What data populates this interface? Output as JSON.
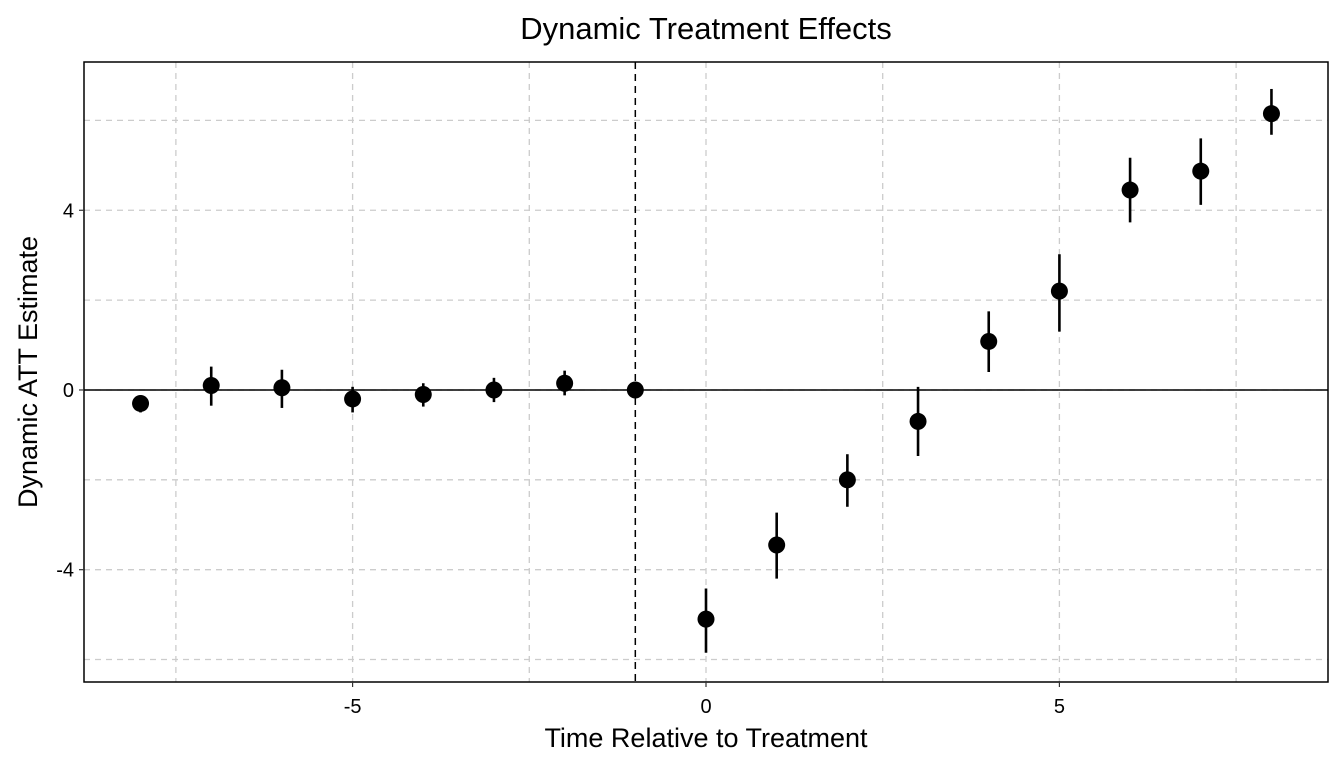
{
  "chart_data": {
    "type": "scatter",
    "title": "Dynamic Treatment Effects",
    "xlabel": "Time Relative to Treatment",
    "ylabel": "Dynamic ATT Estimate",
    "xlim": [
      -8.8,
      8.8
    ],
    "ylim": [
      -6.5,
      7.3
    ],
    "x_ticks": [
      -5,
      0,
      5
    ],
    "x_tick_labels": [
      "-5",
      "0",
      "5"
    ],
    "y_ticks": [
      -4,
      0,
      4
    ],
    "y_tick_labels": [
      "-4",
      "0",
      "4"
    ],
    "x_minor_gridlines": [
      -7.5,
      -2.5,
      2.5,
      7.5
    ],
    "y_minor_gridlines": [
      -6,
      -2,
      2,
      6
    ],
    "grid": true,
    "grid_style": "dashed",
    "hline": 0,
    "vline": -1,
    "vline_style": "dashed",
    "marker_color": "#000000",
    "series": [
      {
        "x": [
          -8,
          -7,
          -6,
          -5,
          -4,
          -3,
          -2,
          -1,
          0,
          1,
          2,
          3,
          4,
          5,
          6,
          7,
          8
        ],
        "y": [
          -0.3,
          0.1,
          0.05,
          -0.2,
          -0.1,
          0.0,
          0.15,
          0.0,
          -5.1,
          -3.45,
          -2.0,
          -0.7,
          1.08,
          2.2,
          4.45,
          4.87,
          6.15
        ],
        "ci_low": [
          -0.5,
          -0.35,
          -0.4,
          -0.5,
          -0.37,
          -0.27,
          -0.12,
          0.0,
          -5.85,
          -4.2,
          -2.6,
          -1.47,
          0.4,
          1.3,
          3.73,
          4.12,
          5.68
        ],
        "ci_high": [
          -0.12,
          0.52,
          0.45,
          0.07,
          0.15,
          0.27,
          0.43,
          0.0,
          -4.42,
          -2.73,
          -1.43,
          0.07,
          1.75,
          3.02,
          5.17,
          5.6,
          6.7
        ]
      }
    ]
  }
}
